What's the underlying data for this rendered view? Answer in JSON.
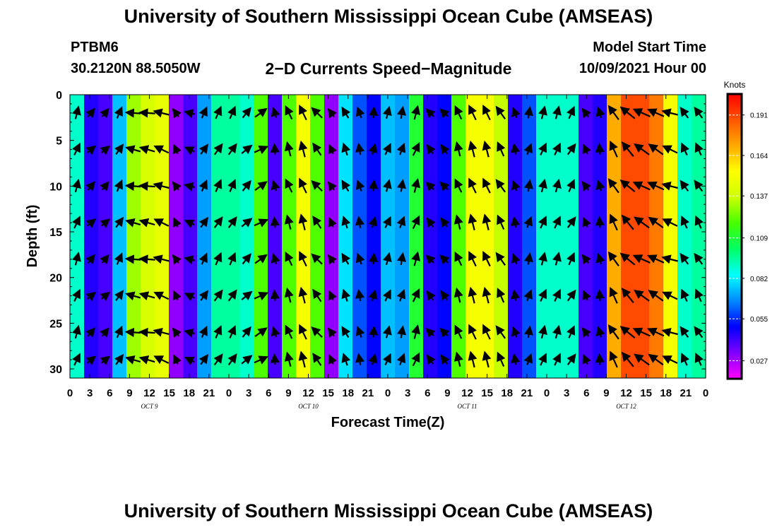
{
  "page": {
    "title": "University of Southern Mississippi Ocean Cube (AMSEAS)",
    "footer": "University of Southern Mississippi Ocean Cube (AMSEAS)",
    "station": "PTBM6",
    "coords": "30.2120N  88.5050W",
    "subtitle": "2−D Currents Speed−Magnitude",
    "start_label": "Model Start Time",
    "start_value": "10/09/2021 Hour 00"
  },
  "chart_data": {
    "type": "heatmap",
    "title": "2−D Currents Speed−Magnitude",
    "xlabel": "Forecast Time(Z)",
    "ylabel": "Depth (ft)",
    "x_tick_labels": [
      "0",
      "3",
      "6",
      "9",
      "12",
      "15",
      "18",
      "21",
      "0",
      "3",
      "6",
      "9",
      "12",
      "15",
      "18",
      "21",
      "0",
      "3",
      "6",
      "9",
      "12",
      "15",
      "18",
      "21",
      "0",
      "3",
      "6",
      "9",
      "12",
      "15",
      "18",
      "21",
      "0"
    ],
    "date_labels": [
      {
        "label": "OCT 9",
        "hours": 12
      },
      {
        "label": "OCT 10",
        "hours": 36
      },
      {
        "label": "OCT 11",
        "hours": 60
      },
      {
        "label": "OCT 12",
        "hours": 84
      }
    ],
    "xlim_hours": [
      0,
      96
    ],
    "ylim_depth_ft": [
      0,
      31
    ],
    "y_tick_labels": [
      "0",
      "5",
      "10",
      "15",
      "20",
      "25",
      "30"
    ],
    "colorbar": {
      "label": "Knots",
      "ticks": [
        "0.191",
        "0.164",
        "0.137",
        "0.109",
        "0.082",
        "0.055",
        "0.027"
      ],
      "range": [
        0.015,
        0.205
      ],
      "colors": [
        "#ff00ff",
        "#8000ff",
        "#0000ff",
        "#0088ff",
        "#00ffff",
        "#00ff66",
        "#44ff00",
        "#ccff00",
        "#ffff00",
        "#ffaa00",
        "#ff5500",
        "#ff0000"
      ]
    },
    "speed_knots_by_column": [
      0.09,
      0.045,
      0.04,
      0.075,
      0.13,
      0.14,
      0.145,
      0.03,
      0.04,
      0.07,
      0.095,
      0.095,
      0.09,
      0.12,
      0.04,
      0.12,
      0.15,
      0.12,
      0.03,
      0.08,
      0.06,
      0.05,
      0.075,
      0.07,
      0.11,
      0.045,
      0.05,
      0.12,
      0.15,
      0.15,
      0.135,
      0.045,
      0.06,
      0.09,
      0.09,
      0.09,
      0.04,
      0.045,
      0.17,
      0.19,
      0.19,
      0.18,
      0.15,
      0.09,
      0.095
    ],
    "arrow_direction_deg_by_column": [
      20,
      45,
      45,
      30,
      -80,
      -80,
      -70,
      -30,
      -70,
      30,
      30,
      30,
      45,
      60,
      -10,
      -20,
      -20,
      -40,
      -30,
      -25,
      -15,
      10,
      20,
      15,
      20,
      -40,
      -40,
      -20,
      -20,
      -20,
      -30,
      -15,
      15,
      20,
      20,
      30,
      -30,
      -10,
      -30,
      -45,
      -60,
      -60,
      -70,
      -30,
      -30
    ],
    "arrow_direction_note": "degrees clockwise from north (0 = pointing up)"
  }
}
